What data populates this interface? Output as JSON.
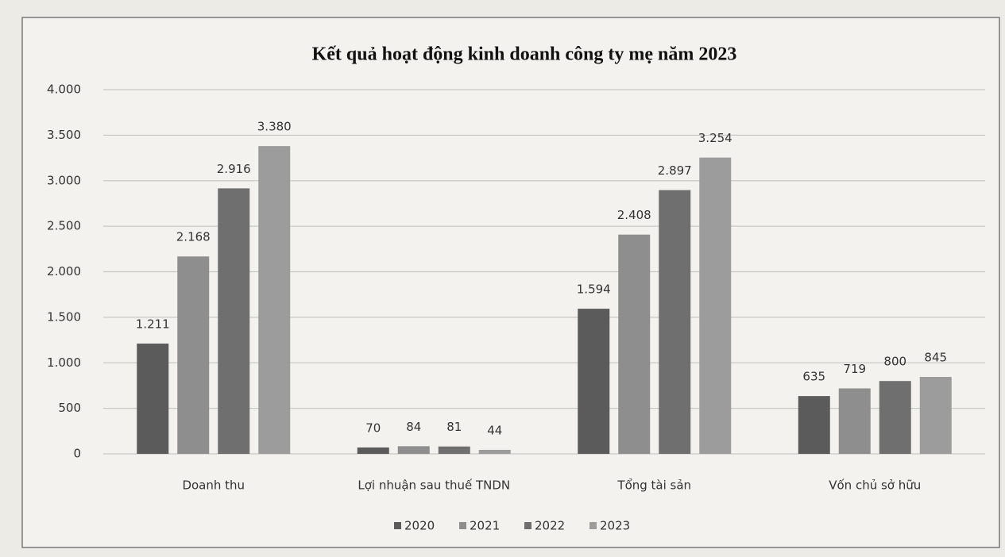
{
  "chart_data": {
    "type": "bar",
    "title": "Kết quả hoạt động kinh doanh công ty mẹ năm 2023",
    "categories": [
      "Doanh thu",
      "Lợi nhuận sau thuế TNDN",
      "Tổng tài sản",
      "Vốn chủ sở hữu"
    ],
    "series": [
      {
        "name": "2020",
        "color": "#5b5b5b",
        "values": [
          1211,
          70,
          1594,
          635
        ],
        "value_labels": [
          "1.211",
          "70",
          "1.594",
          "635"
        ]
      },
      {
        "name": "2021",
        "color": "#8e8e8e",
        "values": [
          2168,
          84,
          2408,
          719
        ],
        "value_labels": [
          "2.168",
          "84",
          "2.408",
          "719"
        ]
      },
      {
        "name": "2022",
        "color": "#6f6f6f",
        "values": [
          2916,
          81,
          2897,
          800
        ],
        "value_labels": [
          "2.916",
          "81",
          "2.897",
          "800"
        ]
      },
      {
        "name": "2023",
        "color": "#9c9c9c",
        "values": [
          3380,
          44,
          3254,
          845
        ],
        "value_labels": [
          "3.380",
          "44",
          "3.254",
          "845"
        ]
      }
    ],
    "ylim": [
      0,
      4000
    ],
    "yticks": [
      0,
      500,
      {
        "value": 1000,
        "label": "1.000"
      },
      {
        "value": 1500,
        "label": "1.500"
      },
      {
        "value": 2000,
        "label": "2.000"
      },
      {
        "value": 2500,
        "label": "2.500"
      },
      {
        "value": 3000,
        "label": "3.000"
      },
      {
        "value": 3500,
        "label": "3.500"
      },
      {
        "value": 4000,
        "label": "4.000"
      }
    ],
    "grid": true,
    "legend": "bottom"
  }
}
